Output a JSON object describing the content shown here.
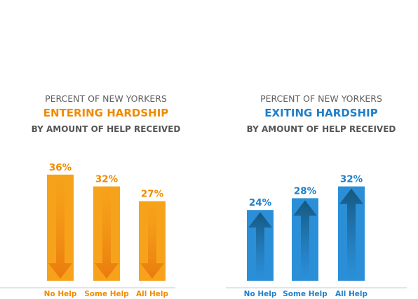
{
  "chart_data": [
    {
      "type": "bar",
      "title_line1": "PERCENT OF NEW YORKERS",
      "title_line2": "ENTERING HARDSHIP",
      "title_line3": "BY AMOUNT OF HELP RECEIVED",
      "categories": [
        "No Help",
        "Some Help",
        "All Help"
      ],
      "values": [
        36,
        32,
        27
      ],
      "value_labels": [
        "36%",
        "32%",
        "27%"
      ],
      "direction": "down",
      "accent_color": "#f08a00",
      "bar_color": "#f7a21b",
      "arrow_color": "#ec7a0c",
      "ylim": [
        0,
        40
      ],
      "grid": false
    },
    {
      "type": "bar",
      "title_line1": "PERCENT OF NEW YORKERS",
      "title_line2": "EXITING HARDSHIP",
      "title_line3": "BY AMOUNT OF HELP RECEIVED",
      "categories": [
        "No Help",
        "Some Help",
        "All Help"
      ],
      "values": [
        24,
        28,
        32
      ],
      "value_labels": [
        "24%",
        "28%",
        "32%"
      ],
      "direction": "up",
      "accent_color": "#1f7fc9",
      "bar_color": "#2b8fd8",
      "arrow_color": "#17628f",
      "ylim": [
        0,
        40
      ],
      "grid": false
    }
  ]
}
